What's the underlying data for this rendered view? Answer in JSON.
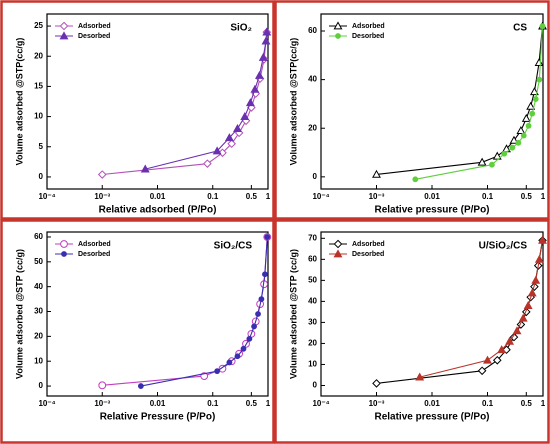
{
  "colors": {
    "panel_border": "#c8352c",
    "axis": "#000000"
  },
  "chart_data": [
    {
      "type": "line",
      "title": "SiO₂",
      "xlabel": "Relative adsorbed (P/Po)",
      "ylabel": "Volume adsorbed @STP(cc/g)",
      "x_scale": "log",
      "xlim": [
        0.0001,
        1
      ],
      "ylim": [
        -2,
        27
      ],
      "x_ticks": [
        {
          "v": 0.0001,
          "label": "10⁻⁴"
        },
        {
          "v": 0.001,
          "label": "10⁻³"
        },
        {
          "v": 0.01,
          "label": "0.01"
        },
        {
          "v": 0.1,
          "label": "0.1"
        },
        {
          "v": 0.5,
          "label": "0.5"
        },
        {
          "v": 1,
          "label": "1"
        }
      ],
      "y_ticks": [
        0,
        5,
        10,
        15,
        20,
        25
      ],
      "legend_position": "top-left",
      "series": [
        {
          "name": "Adsorbed",
          "color": "#b44fb8",
          "marker": "diamond-open",
          "x": [
            0.001,
            0.08,
            0.15,
            0.22,
            0.3,
            0.4,
            0.5,
            0.6,
            0.72,
            0.85,
            0.95
          ],
          "y": [
            0.4,
            2.2,
            4.0,
            5.5,
            7.3,
            9.3,
            11.5,
            13.8,
            16.3,
            19.5,
            24
          ]
        },
        {
          "name": "Desorbed",
          "color": "#6a30b0",
          "marker": "triangle-filled",
          "x": [
            0.006,
            0.12,
            0.2,
            0.28,
            0.38,
            0.48,
            0.58,
            0.7,
            0.82,
            0.92,
            0.95
          ],
          "y": [
            1.3,
            4.3,
            6.5,
            8.0,
            10.0,
            12.3,
            14.5,
            16.8,
            19.8,
            22.5,
            24
          ]
        }
      ]
    },
    {
      "type": "line",
      "title": "CS",
      "xlabel": "Relative pressure (P/Po)",
      "ylabel": "Volume adsorbed @STP(cc/g)",
      "x_scale": "log",
      "xlim": [
        0.0001,
        1
      ],
      "ylim": [
        -5,
        67
      ],
      "x_ticks": [
        {
          "v": 0.0001,
          "label": "10⁻⁴"
        },
        {
          "v": 0.001,
          "label": "10⁻³"
        },
        {
          "v": 0.01,
          "label": "0.01"
        },
        {
          "v": 0.1,
          "label": "0.1"
        },
        {
          "v": 0.5,
          "label": "0.5"
        },
        {
          "v": 1,
          "label": "1"
        }
      ],
      "y_ticks": [
        0,
        20,
        40,
        60
      ],
      "legend_position": "top-left",
      "series": [
        {
          "name": "Adsorbed",
          "color": "#000000",
          "marker": "triangle-open",
          "x": [
            0.001,
            0.08,
            0.15,
            0.22,
            0.3,
            0.4,
            0.5,
            0.6,
            0.7,
            0.85,
            0.98
          ],
          "y": [
            1,
            6,
            8.5,
            11.5,
            15,
            19,
            24,
            29,
            35,
            47,
            62
          ]
        },
        {
          "name": "Desorbed",
          "color": "#5fcf3c",
          "marker": "circle-filled",
          "x": [
            0.005,
            0.12,
            0.2,
            0.28,
            0.36,
            0.45,
            0.55,
            0.64,
            0.74,
            0.86,
            0.98
          ],
          "y": [
            -1,
            5,
            9.5,
            12,
            14,
            17,
            21,
            26,
            32,
            40,
            62
          ]
        }
      ]
    },
    {
      "type": "line",
      "title": "SiO₂/CS",
      "xlabel": "Relative Pressure (P/Po)",
      "ylabel": "Volume adsorbed @STP (cc/g)",
      "x_scale": "log",
      "xlim": [
        0.0001,
        1
      ],
      "ylim": [
        -4,
        62
      ],
      "x_ticks": [
        {
          "v": 0.0001,
          "label": "10⁻⁴"
        },
        {
          "v": 0.001,
          "label": "10⁻³"
        },
        {
          "v": 0.01,
          "label": "0.01"
        },
        {
          "v": 0.1,
          "label": "0.1"
        },
        {
          "v": 0.5,
          "label": "0.5"
        },
        {
          "v": 1,
          "label": "1"
        }
      ],
      "y_ticks": [
        0,
        10,
        20,
        30,
        40,
        50,
        60
      ],
      "legend_position": "top-left",
      "series": [
        {
          "name": "Adsorbed",
          "color": "#c23cc2",
          "marker": "circle-open",
          "x": [
            0.001,
            0.07,
            0.15,
            0.22,
            0.3,
            0.4,
            0.5,
            0.6,
            0.72,
            0.85,
            0.97
          ],
          "y": [
            0.3,
            4,
            7,
            10,
            13,
            17,
            21,
            26,
            33,
            41,
            60
          ]
        },
        {
          "name": "Desorbed",
          "color": "#3a2fb0",
          "marker": "circle-filled",
          "x": [
            0.005,
            0.12,
            0.2,
            0.28,
            0.36,
            0.46,
            0.56,
            0.66,
            0.76,
            0.88,
            0.97
          ],
          "y": [
            0,
            6,
            9.5,
            12,
            15,
            19,
            24,
            29,
            35,
            45,
            60
          ]
        }
      ]
    },
    {
      "type": "line",
      "title": "U/SiO₂/CS",
      "xlabel": "Relative pressure (P/Po)",
      "ylabel": "Volume adsorbed @STP (cc/g)",
      "x_scale": "log",
      "xlim": [
        0.0001,
        1
      ],
      "ylim": [
        -5,
        73
      ],
      "x_ticks": [
        {
          "v": 0.0001,
          "label": "10⁻⁴"
        },
        {
          "v": 0.001,
          "label": "10⁻³"
        },
        {
          "v": 0.01,
          "label": "0.01"
        },
        {
          "v": 0.1,
          "label": "0.1"
        },
        {
          "v": 0.5,
          "label": "0.5"
        },
        {
          "v": 1,
          "label": "1"
        }
      ],
      "y_ticks": [
        0,
        10,
        20,
        30,
        40,
        50,
        60,
        70
      ],
      "legend_position": "top-left",
      "series": [
        {
          "name": "Adsorbed",
          "color": "#000000",
          "marker": "diamond-open",
          "x": [
            0.001,
            0.08,
            0.15,
            0.22,
            0.3,
            0.4,
            0.5,
            0.6,
            0.7,
            0.82,
            0.98
          ],
          "y": [
            1,
            7,
            12,
            17,
            23,
            29,
            35,
            42,
            47,
            57,
            69
          ]
        },
        {
          "name": "Desorbed",
          "color": "#b8342a",
          "marker": "triangle-filled",
          "x": [
            0.006,
            0.1,
            0.18,
            0.25,
            0.34,
            0.44,
            0.54,
            0.64,
            0.74,
            0.86,
            0.98
          ],
          "y": [
            4,
            12,
            17,
            21,
            26,
            32,
            38,
            44,
            50,
            60,
            69
          ]
        }
      ]
    }
  ]
}
